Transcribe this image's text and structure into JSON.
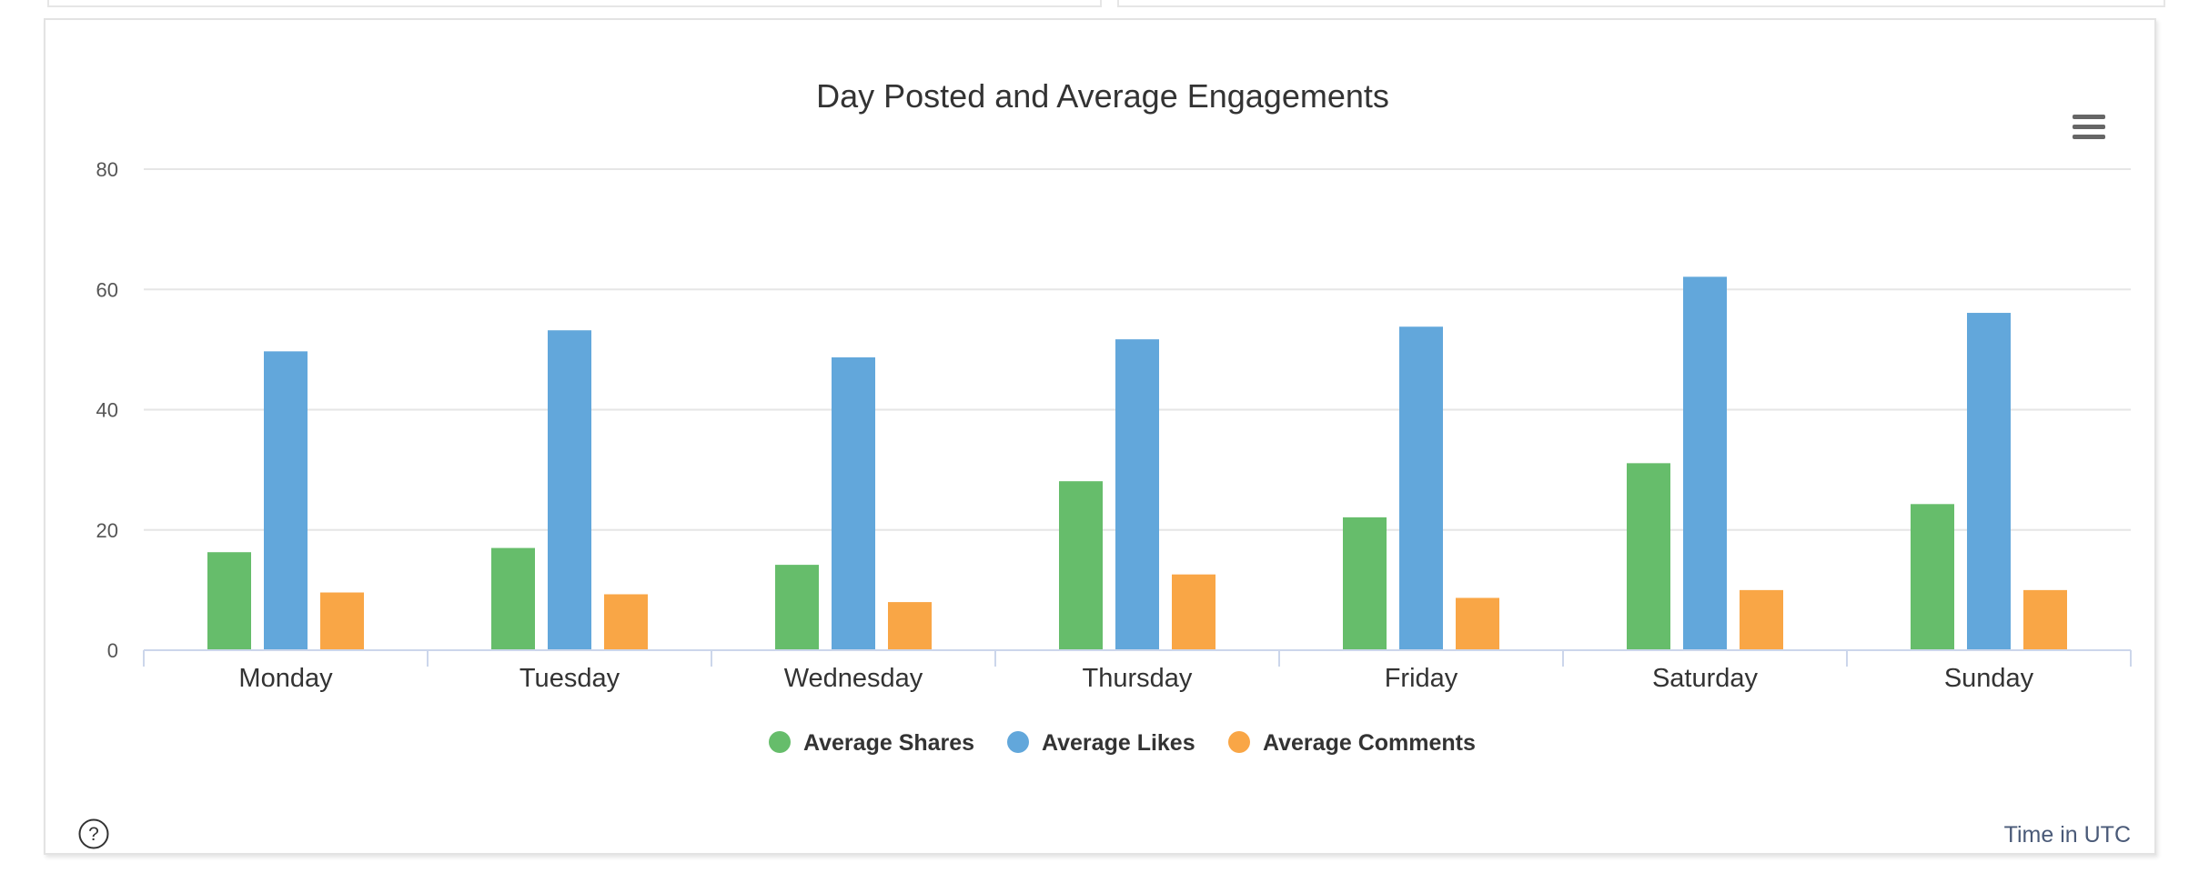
{
  "chart_data": {
    "type": "bar",
    "title": "Day Posted and Average Engagements",
    "categories": [
      "Monday",
      "Tuesday",
      "Wednesday",
      "Thursday",
      "Friday",
      "Saturday",
      "Sunday"
    ],
    "series": [
      {
        "name": "Average Shares",
        "color": "#66bd6b",
        "values": [
          16.3,
          17.0,
          14.2,
          28.1,
          22.1,
          31.1,
          24.3
        ]
      },
      {
        "name": "Average Likes",
        "color": "#62a7db",
        "values": [
          49.7,
          53.2,
          48.7,
          51.7,
          53.8,
          62.1,
          56.1
        ]
      },
      {
        "name": "Average Comments",
        "color": "#f9a646",
        "values": [
          9.6,
          9.3,
          8.0,
          12.6,
          8.7,
          10.0,
          10.0
        ]
      }
    ],
    "yticks": [
      0,
      20,
      40,
      60,
      80
    ],
    "ylim": [
      0,
      80
    ],
    "xlabel": "",
    "ylabel": "",
    "grid": true,
    "legend": "bottom-center"
  },
  "footer": {
    "time_label": "Time in UTC"
  },
  "icons": {
    "menu": "hamburger-menu-icon",
    "help": "question-circle-icon"
  }
}
